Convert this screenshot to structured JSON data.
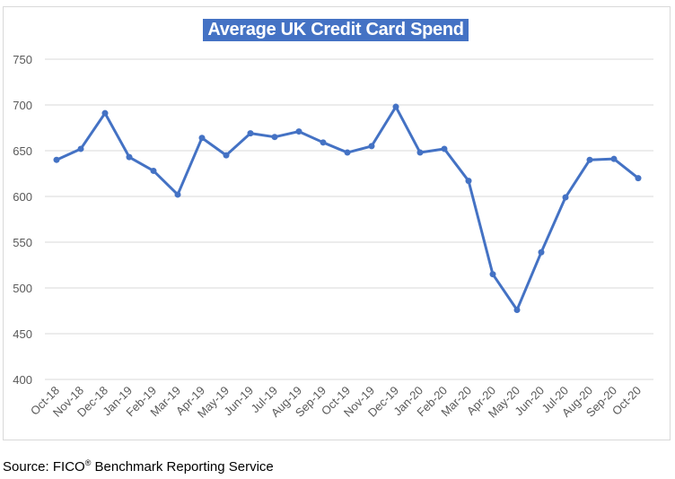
{
  "chart_data": {
    "type": "line",
    "title": "Average UK Credit Card Spend",
    "xlabel": "",
    "ylabel": "",
    "ylim": [
      400,
      750
    ],
    "yticks": [
      400,
      450,
      500,
      550,
      600,
      650,
      700,
      750
    ],
    "grid": true,
    "legend": "none",
    "categories": [
      "Oct-18",
      "Nov-18",
      "Dec-18",
      "Jan-19",
      "Feb-19",
      "Mar-19",
      "Apr-19",
      "May-19",
      "Jun-19",
      "Jul-19",
      "Aug-19",
      "Sep-19",
      "Oct-19",
      "Nov-19",
      "Dec-19",
      "Jan-20",
      "Feb-20",
      "Mar-20",
      "Apr-20",
      "May-20",
      "Jun-20",
      "Jul-20",
      "Aug-20",
      "Sep-20",
      "Oct-20"
    ],
    "series": [
      {
        "values": [
          640,
          652,
          691,
          643,
          628,
          602,
          664,
          645,
          669,
          665,
          671,
          659,
          648,
          655,
          698,
          648,
          652,
          617,
          515,
          476,
          539,
          599,
          640,
          641,
          620
        ],
        "color": "#4472c4"
      }
    ]
  },
  "source": {
    "prefix": "Source: FICO",
    "mark": "®",
    "suffix": " Benchmark Reporting Service"
  }
}
